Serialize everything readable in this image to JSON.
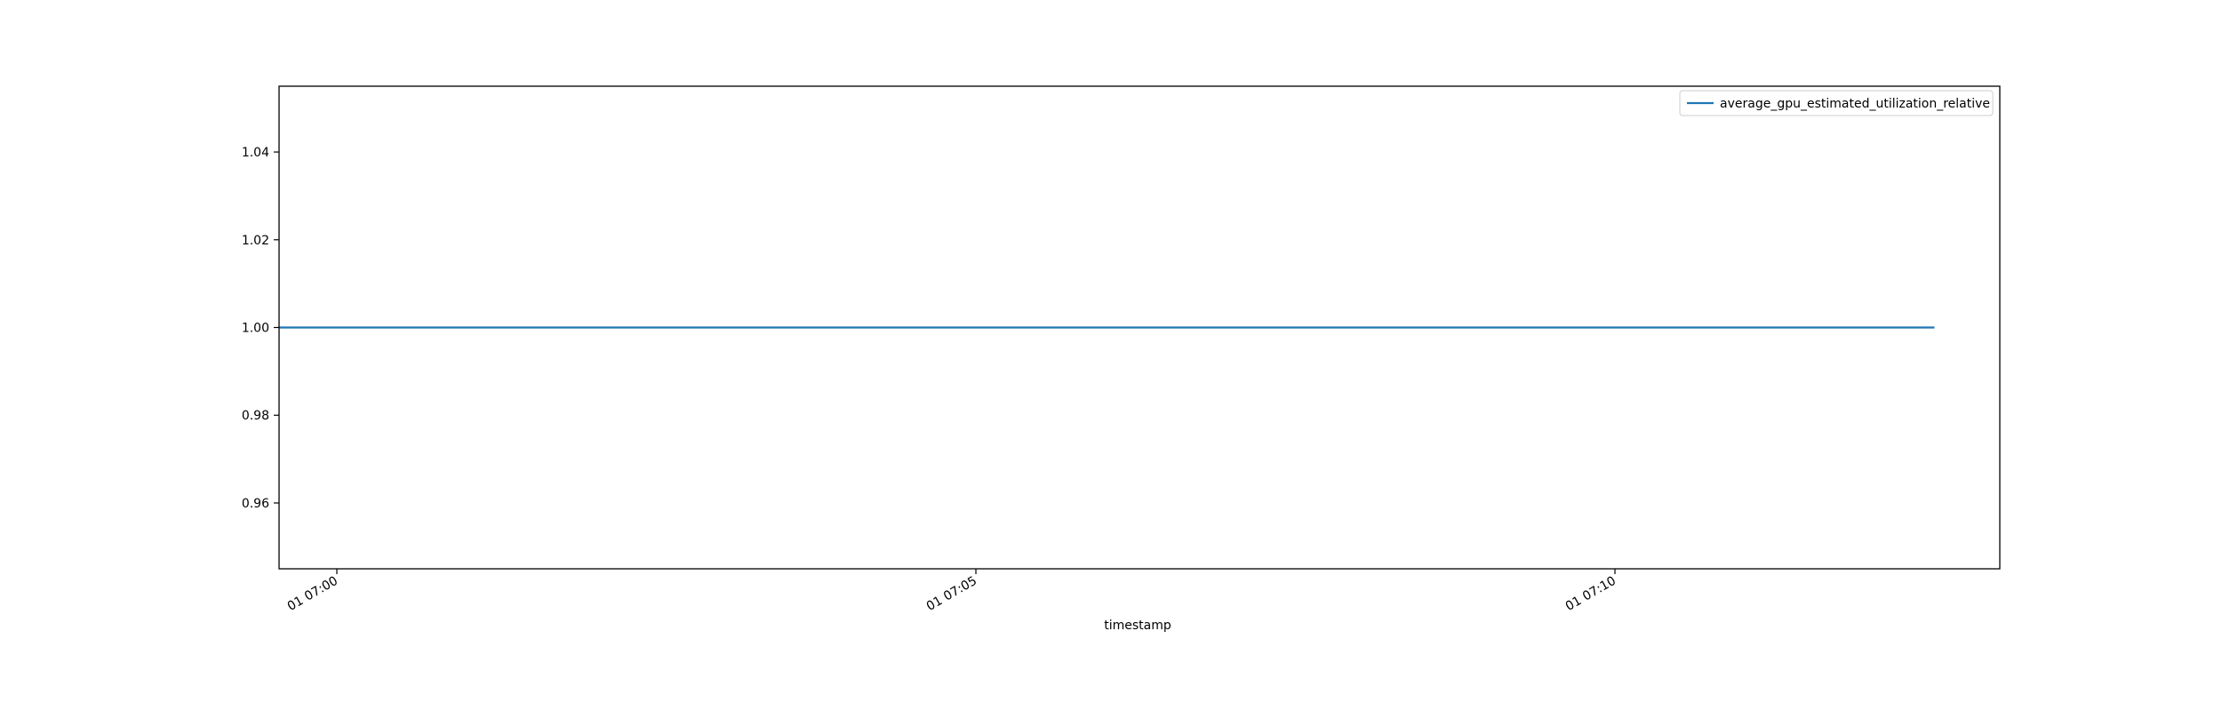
{
  "chart_data": {
    "type": "line",
    "xlabel": "timestamp",
    "ylabel": "",
    "x_ticks": [
      "01 07:00",
      "01 07:05",
      "01 07:10"
    ],
    "y_ticks": [
      "0.96",
      "0.98",
      "1.00",
      "1.02",
      "1.04"
    ],
    "ylim": [
      0.945,
      1.055
    ],
    "grid": false,
    "legend_position": "upper right",
    "series": [
      {
        "name": "average_gpu_estimated_utilization_relative",
        "color": "#1f77b4",
        "x": [
          "01 06:59:00",
          "01 07:12:30"
        ],
        "values": [
          1.0,
          1.0
        ]
      }
    ]
  }
}
